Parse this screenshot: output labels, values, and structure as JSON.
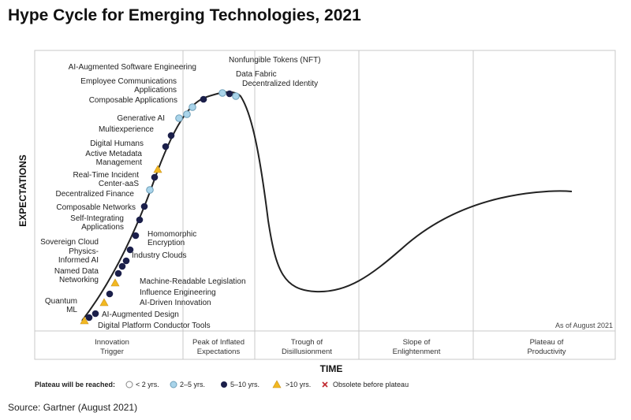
{
  "title": "Hype Cycle for Emerging Technologies, 2021",
  "source": "Source: Gartner (August 2021)",
  "y_axis_label": "EXPECTATIONS",
  "x_axis_label": "TIME",
  "as_of": "As of August 2021",
  "phases": [
    {
      "line1": "Innovation",
      "line2": "Trigger"
    },
    {
      "line1": "Peak of Inflated",
      "line2": "Expectations"
    },
    {
      "line1": "Trough of",
      "line2": "Disillusionment"
    },
    {
      "line1": "Slope of",
      "line2": "Enlightenment"
    },
    {
      "line1": "Plateau of",
      "line2": "Productivity"
    }
  ],
  "legend": {
    "title": "Plateau will be reached:",
    "items": [
      "< 2 yrs.",
      "2–5 yrs.",
      "5–10 yrs.",
      ">10 yrs.",
      "Obsolete before plateau"
    ]
  },
  "colors": {
    "lt2": "#ffffff",
    "y2to5": "#a9d4ea",
    "y5to10": "#1b1f4a",
    "gt10": "#f2b821",
    "obsolete": "#c0272d",
    "curve": "#222222",
    "grid": "#c8c8c8"
  },
  "technologies": [
    {
      "label": "Nonfungible Tokens (NFT)",
      "category": "2-5"
    },
    {
      "label": "Data Fabric",
      "category": "5-10"
    },
    {
      "label": "Decentralized Identity",
      "category": "2-5"
    },
    {
      "label": "AI-Augmented Software Engineering",
      "category": "5-10"
    },
    {
      "label": "Employee Communications Applications",
      "category": "2-5"
    },
    {
      "label": "Composable Applications",
      "category": "2-5"
    },
    {
      "label": "Generative AI",
      "category": "2-5"
    },
    {
      "label": "Multiexperience",
      "category": "5-10"
    },
    {
      "label": "Digital Humans",
      "category": "5-10"
    },
    {
      "label": "Active Metadata Management",
      "category": ">10"
    },
    {
      "label": "Real-Time Incident Center-aaS",
      "category": "5-10"
    },
    {
      "label": "Decentralized Finance",
      "category": "2-5"
    },
    {
      "label": "Composable Networks",
      "category": "5-10"
    },
    {
      "label": "Self-Integrating Applications",
      "category": "5-10"
    },
    {
      "label": "Homomorphic Encryption",
      "category": "5-10"
    },
    {
      "label": "Sovereign Cloud",
      "category": "5-10"
    },
    {
      "label": "Physics-Informed AI",
      "category": "5-10"
    },
    {
      "label": "Industry Clouds",
      "category": "5-10"
    },
    {
      "label": "Named Data Networking",
      "category": "5-10"
    },
    {
      "label": "Machine-Readable Legislation",
      "category": ">10"
    },
    {
      "label": "Influence Engineering",
      "category": "5-10"
    },
    {
      "label": "AI-Driven Innovation",
      "category": ">10"
    },
    {
      "label": "Quantum ML",
      "category": "5-10"
    },
    {
      "label": "AI-Augmented Design",
      "category": "5-10"
    },
    {
      "label": "Digital Platform Conductor Tools",
      "category": ">10"
    }
  ]
}
